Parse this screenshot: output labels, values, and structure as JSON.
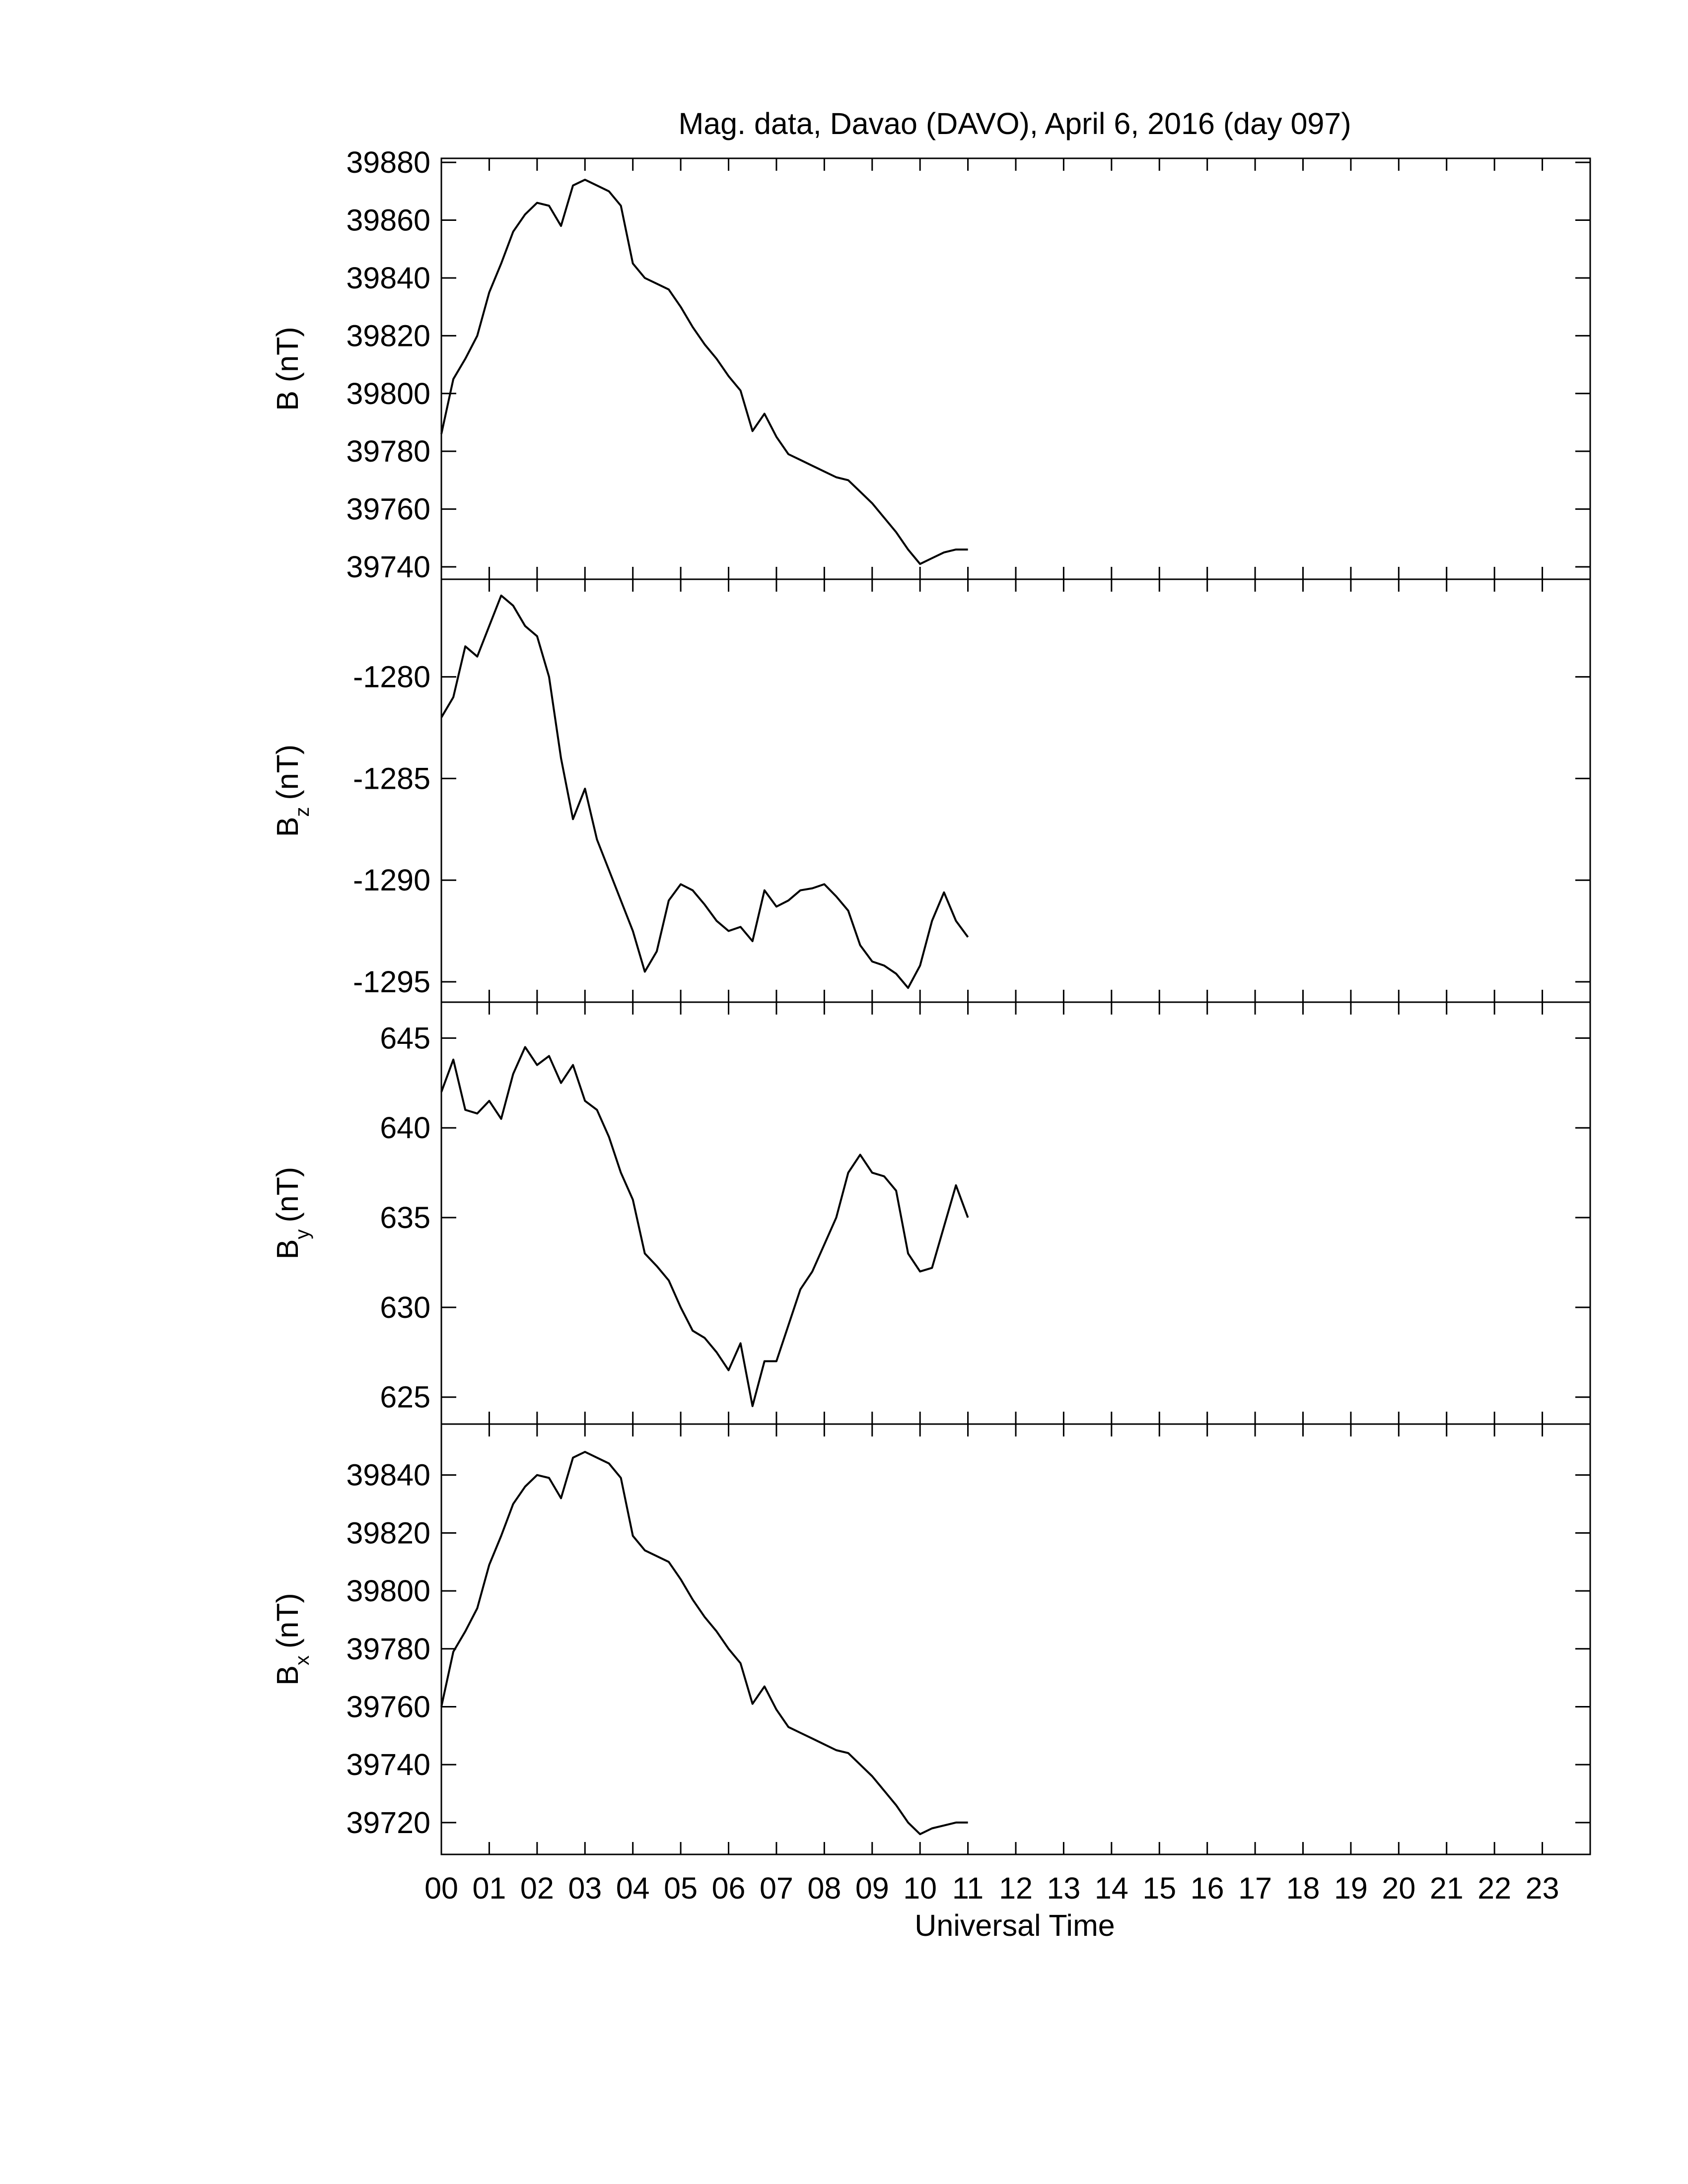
{
  "chart_data": [
    {
      "type": "line",
      "title": "Mag. data, Davao (DAVO), April 6, 2016 (day 097)",
      "y_label": [
        "B (nT)"
      ],
      "color": "#000000",
      "xlim": [
        0,
        24
      ],
      "x": [
        0,
        0.25,
        0.5,
        0.75,
        1,
        1.25,
        1.5,
        1.75,
        2,
        2.25,
        2.5,
        2.75,
        3,
        3.25,
        3.5,
        3.75,
        4,
        4.25,
        4.5,
        4.75,
        5,
        5.25,
        5.5,
        5.75,
        6,
        6.25,
        6.5,
        6.75,
        7,
        7.25,
        7.5,
        7.75,
        8,
        8.25,
        8.5,
        8.75,
        9,
        9.25,
        9.5,
        9.75,
        10,
        10.25,
        10.5,
        10.75,
        11
      ],
      "values": [
        39786,
        39805,
        39812,
        39820,
        39835,
        39845,
        39856,
        39862,
        39866,
        39865,
        39858,
        39872,
        39874,
        39872,
        39870,
        39865,
        39845,
        39840,
        39838,
        39836,
        39830,
        39823,
        39817,
        39812,
        39806,
        39801,
        39787,
        39793,
        39785,
        39779,
        39777,
        39775,
        39773,
        39771,
        39770,
        39766,
        39762,
        39757,
        39752,
        39746,
        39741,
        39743,
        39745,
        39746,
        39746
      ],
      "ylim": [
        39735.7,
        39881.4
      ],
      "yticks": [
        39740,
        39760,
        39780,
        39800,
        39820,
        39840,
        39860,
        39880
      ]
    },
    {
      "type": "line",
      "y_label": [
        "B",
        "z",
        "(nT)"
      ],
      "color": "#000000",
      "xlim": [
        0,
        24
      ],
      "x": [
        0,
        0.25,
        0.5,
        0.75,
        1,
        1.25,
        1.5,
        1.75,
        2,
        2.25,
        2.5,
        2.75,
        3,
        3.25,
        3.5,
        3.75,
        4,
        4.25,
        4.5,
        4.75,
        5,
        5.25,
        5.5,
        5.75,
        6,
        6.25,
        6.5,
        6.75,
        7,
        7.25,
        7.5,
        7.75,
        8,
        8.25,
        8.5,
        8.75,
        9,
        9.25,
        9.5,
        9.75,
        10,
        10.25,
        10.5,
        10.75,
        11
      ],
      "values": [
        -1282,
        -1281,
        -1278.5,
        -1279,
        -1277.5,
        -1276,
        -1276.5,
        -1277.5,
        -1278,
        -1280,
        -1284,
        -1287,
        -1285.5,
        -1288,
        -1289.5,
        -1291,
        -1292.5,
        -1294.5,
        -1293.5,
        -1291,
        -1290.2,
        -1290.5,
        -1291.2,
        -1292,
        -1292.5,
        -1292.3,
        -1293,
        -1290.5,
        -1291.3,
        -1291,
        -1290.5,
        -1290.4,
        -1290.2,
        -1290.8,
        -1291.5,
        -1293.2,
        -1294,
        -1294.2,
        -1294.6,
        -1295.3,
        -1294.2,
        -1292,
        -1290.6,
        -1292,
        -1292.8
      ],
      "ylim": [
        -1296,
        -1275.2
      ],
      "yticks": [
        -1295,
        -1290,
        -1285,
        -1280
      ]
    },
    {
      "type": "line",
      "y_label": [
        "B",
        "y",
        "(nT)"
      ],
      "color": "#000000",
      "xlim": [
        0,
        24
      ],
      "x": [
        0,
        0.25,
        0.5,
        0.75,
        1,
        1.25,
        1.5,
        1.75,
        2,
        2.25,
        2.5,
        2.75,
        3,
        3.25,
        3.5,
        3.75,
        4,
        4.25,
        4.5,
        4.75,
        5,
        5.25,
        5.5,
        5.75,
        6,
        6.25,
        6.5,
        6.75,
        7,
        7.25,
        7.5,
        7.75,
        8,
        8.25,
        8.5,
        8.75,
        9,
        9.25,
        9.5,
        9.75,
        10,
        10.25,
        10.5,
        10.75,
        11
      ],
      "values": [
        642,
        643.8,
        641,
        640.8,
        641.5,
        640.5,
        643,
        644.5,
        643.5,
        644,
        642.5,
        643.5,
        641.5,
        641,
        639.5,
        637.5,
        636,
        633,
        632.3,
        631.5,
        630,
        628.7,
        628.3,
        627.5,
        626.5,
        628,
        624.5,
        627,
        627,
        629,
        631,
        632,
        633.5,
        635,
        637.5,
        638.5,
        637.5,
        637.3,
        636.5,
        633,
        632,
        632.2,
        634.5,
        636.8,
        635
      ],
      "ylim": [
        623.5,
        647
      ],
      "yticks": [
        625,
        630,
        635,
        640,
        645
      ]
    },
    {
      "type": "line",
      "y_label": [
        "B",
        "x",
        "(nT)"
      ],
      "x_label": "Universal Time",
      "color": "#000000",
      "xlim": [
        0,
        24
      ],
      "xticks": [
        {
          "value": 0,
          "label": "00"
        },
        {
          "value": 1,
          "label": "01"
        },
        {
          "value": 2,
          "label": "02"
        },
        {
          "value": 3,
          "label": "03"
        },
        {
          "value": 4,
          "label": "04"
        },
        {
          "value": 5,
          "label": "05"
        },
        {
          "value": 6,
          "label": "06"
        },
        {
          "value": 7,
          "label": "07"
        },
        {
          "value": 8,
          "label": "08"
        },
        {
          "value": 9,
          "label": "09"
        },
        {
          "value": 10,
          "label": "10"
        },
        {
          "value": 11,
          "label": "11"
        },
        {
          "value": 12,
          "label": "12"
        },
        {
          "value": 13,
          "label": "13"
        },
        {
          "value": 14,
          "label": "14"
        },
        {
          "value": 15,
          "label": "15"
        },
        {
          "value": 16,
          "label": "16"
        },
        {
          "value": 17,
          "label": "17"
        },
        {
          "value": 18,
          "label": "18"
        },
        {
          "value": 19,
          "label": "19"
        },
        {
          "value": 20,
          "label": "20"
        },
        {
          "value": 21,
          "label": "21"
        },
        {
          "value": 22,
          "label": "22"
        },
        {
          "value": 23,
          "label": "23"
        }
      ],
      "x": [
        0,
        0.25,
        0.5,
        0.75,
        1,
        1.25,
        1.5,
        1.75,
        2,
        2.25,
        2.5,
        2.75,
        3,
        3.25,
        3.5,
        3.75,
        4,
        4.25,
        4.5,
        4.75,
        5,
        5.25,
        5.5,
        5.75,
        6,
        6.25,
        6.5,
        6.75,
        7,
        7.25,
        7.5,
        7.75,
        8,
        8.25,
        8.5,
        8.75,
        9,
        9.25,
        9.5,
        9.75,
        10,
        10.25,
        10.5,
        10.75,
        11
      ],
      "values": [
        39760,
        39779,
        39786,
        39794,
        39809,
        39819,
        39830,
        39836,
        39840,
        39839,
        39832,
        39846,
        39848,
        39846,
        39844,
        39839,
        39819,
        39814,
        39812,
        39810,
        39804,
        39797,
        39791,
        39786,
        39780,
        39775,
        39761,
        39767,
        39759,
        39753,
        39751,
        39749,
        39747,
        39745,
        39744,
        39740,
        39736,
        39731,
        39726,
        39720,
        39716,
        39718,
        39719,
        39720,
        39720
      ],
      "ylim": [
        39709,
        39857.6
      ],
      "yticks": [
        39720,
        39740,
        39760,
        39780,
        39800,
        39820,
        39840
      ]
    }
  ]
}
